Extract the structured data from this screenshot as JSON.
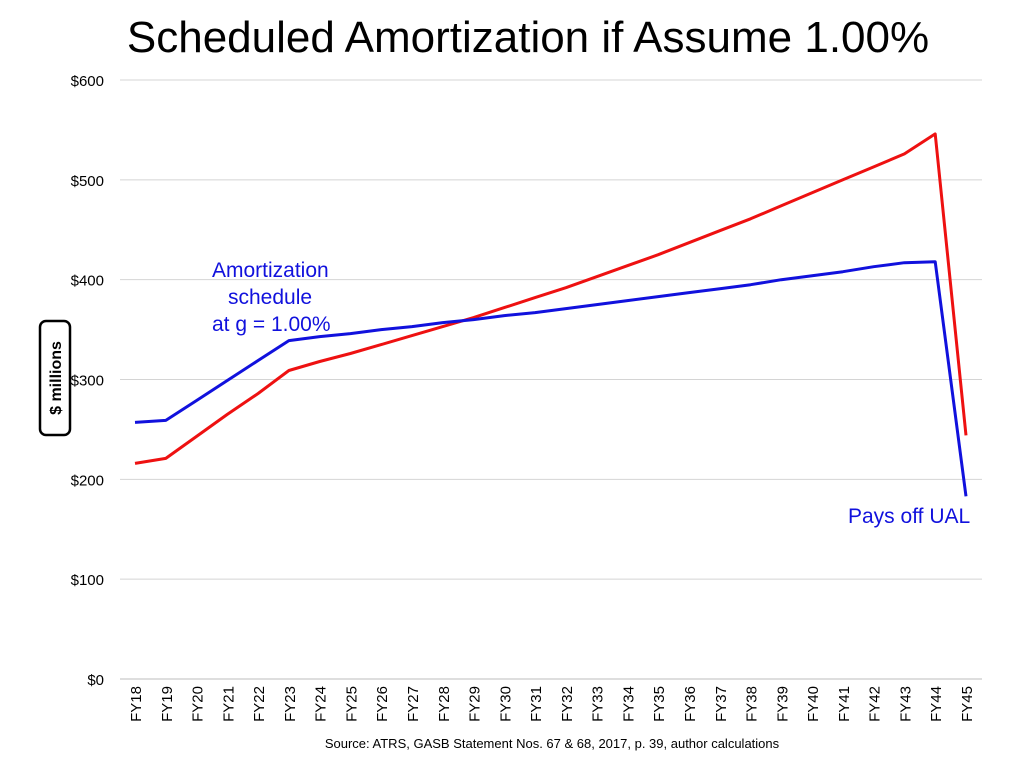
{
  "chart_data": {
    "type": "line",
    "title": "Scheduled Amortization if Assume 1.00%",
    "ylabel": "$ millions",
    "xlabel": "",
    "source": "Source:  ATRS, GASB Statement Nos. 67 & 68, 2017, p. 39, author calculations",
    "ylim": [
      0,
      600
    ],
    "yticks": [
      0,
      100,
      200,
      300,
      400,
      500,
      600
    ],
    "ytick_labels": [
      "$0",
      "$100",
      "$200",
      "$300",
      "$400",
      "$500",
      "$600"
    ],
    "grid": true,
    "legend": "none",
    "categories": [
      "FY18",
      "FY19",
      "FY20",
      "FY21",
      "FY22",
      "FY23",
      "FY24",
      "FY25",
      "FY26",
      "FY27",
      "FY28",
      "FY29",
      "FY30",
      "FY31",
      "FY32",
      "FY33",
      "FY34",
      "FY35",
      "FY36",
      "FY37",
      "FY38",
      "FY39",
      "FY40",
      "FY41",
      "FY42",
      "FY43",
      "FY44",
      "FY45"
    ],
    "series": [
      {
        "color": "#ee1111",
        "values": [
          216,
          221,
          243,
          265,
          286,
          309,
          318,
          326,
          335,
          344,
          353,
          362,
          372,
          382,
          392,
          403,
          414,
          425,
          437,
          449,
          461,
          474,
          487,
          500,
          513,
          526,
          546,
          244
        ]
      },
      {
        "color": "#1111dd",
        "values": [
          257,
          259,
          279,
          299,
          319,
          339,
          343,
          346,
          350,
          353,
          357,
          360,
          364,
          367,
          371,
          375,
          379,
          383,
          387,
          391,
          395,
          400,
          404,
          408,
          413,
          417,
          418,
          183
        ]
      }
    ],
    "annotations": [
      {
        "lines": [
          "Amortization",
          "schedule",
          "at g = 1.00%"
        ],
        "color": "#1111dd"
      },
      {
        "lines": [
          "Pays off UAL"
        ],
        "color": "#1111dd"
      }
    ]
  }
}
